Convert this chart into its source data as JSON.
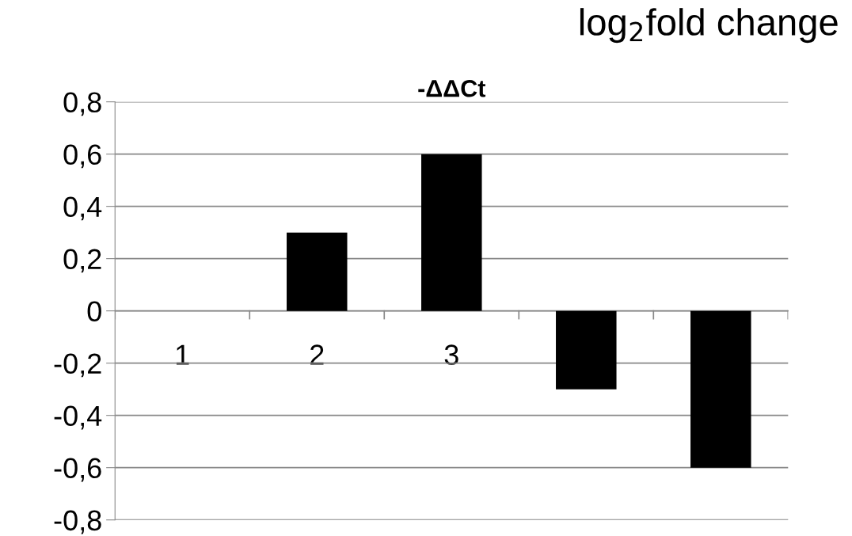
{
  "chart_data": {
    "type": "bar",
    "title": "-ΔΔCt",
    "annotations": [
      "log$_{2}$fold change"
    ],
    "categories": [
      "1",
      "2",
      "3",
      null,
      null
    ],
    "values": [
      0,
      0.3,
      0.6,
      -0.3,
      -0.6
    ],
    "color": "#000000",
    "ylim": [
      -0.8,
      0.8
    ],
    "yticks": [
      {
        "value": -0.8,
        "label": "-0,8"
      },
      {
        "value": -0.6,
        "label": "-0,6"
      },
      {
        "value": -0.4,
        "label": "-0,4"
      },
      {
        "value": -0.2,
        "label": "-0,2"
      },
      0,
      {
        "value": 0.2,
        "label": "0,2"
      },
      {
        "value": 0.4,
        "label": "0,4"
      },
      {
        "value": 0.6,
        "label": "0,6"
      },
      {
        "value": 0.8,
        "label": "0,8"
      }
    ],
    "grid": "y"
  }
}
